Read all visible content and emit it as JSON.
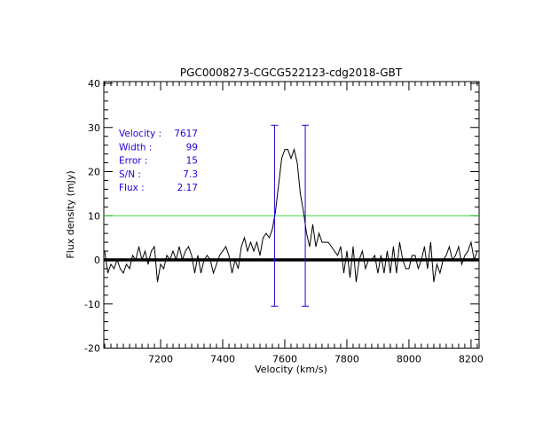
{
  "chart_data": {
    "type": "line",
    "title": "PGC0008273-CGCG522123-cdg2018-GBT",
    "xlabel": "Velocity (km/s)",
    "ylabel": "Flux density (mJy)",
    "xlim": [
      7017,
      8226
    ],
    "ylim": [
      -20,
      40
    ],
    "x_ticks": [
      7200,
      7400,
      7600,
      7800,
      8000,
      8200
    ],
    "y_ticks": [
      -20,
      -10,
      0,
      10,
      20,
      30,
      40
    ],
    "x_minor_step": 20,
    "y_minor_step": 2,
    "grid": false,
    "reference_lines": [
      {
        "y": 0,
        "color": "#000000",
        "style": "thick"
      },
      {
        "y": 10,
        "color": "#33dd33",
        "style": "thin"
      }
    ],
    "markers": [
      {
        "x": 7567,
        "y_range": [
          -10.5,
          30.5
        ],
        "color": "#2200dd"
      },
      {
        "x": 7666,
        "y_range": [
          -10.5,
          30.5
        ],
        "color": "#2200dd"
      }
    ],
    "annotations": [
      {
        "label": "Velocity :",
        "value": "7617"
      },
      {
        "label": "Width :",
        "value": "99"
      },
      {
        "label": "Error :",
        "value": "15"
      },
      {
        "label": "S/N :",
        "value": "7.3"
      },
      {
        "label": "Flux :",
        "value": "2.17"
      }
    ],
    "annotation_color": "#2200dd",
    "series": [
      {
        "color": "#000000",
        "x": [
          7020,
          7030,
          7040,
          7050,
          7060,
          7070,
          7080,
          7090,
          7100,
          7110,
          7120,
          7130,
          7140,
          7150,
          7160,
          7170,
          7180,
          7190,
          7200,
          7210,
          7220,
          7230,
          7240,
          7250,
          7260,
          7270,
          7280,
          7290,
          7300,
          7310,
          7320,
          7330,
          7340,
          7350,
          7360,
          7370,
          7380,
          7390,
          7400,
          7410,
          7420,
          7430,
          7440,
          7450,
          7460,
          7470,
          7480,
          7490,
          7500,
          7510,
          7520,
          7530,
          7540,
          7550,
          7560,
          7570,
          7580,
          7590,
          7600,
          7610,
          7620,
          7630,
          7640,
          7650,
          7660,
          7670,
          7680,
          7690,
          7700,
          7710,
          7720,
          7730,
          7740,
          7750,
          7760,
          7770,
          7780,
          7790,
          7800,
          7810,
          7820,
          7830,
          7840,
          7850,
          7860,
          7870,
          7880,
          7890,
          7900,
          7910,
          7920,
          7930,
          7940,
          7950,
          7960,
          7970,
          7980,
          7990,
          8000,
          8010,
          8020,
          8030,
          8040,
          8050,
          8060,
          8070,
          8080,
          8090,
          8100,
          8110,
          8120,
          8130,
          8140,
          8150,
          8160,
          8170,
          8180,
          8190,
          8200,
          8210,
          8220
        ],
        "values": [
          2,
          -3,
          -1,
          -2,
          0,
          -2,
          -3,
          -1,
          -2,
          1,
          0,
          3,
          0,
          2,
          -1,
          2,
          3,
          -5,
          -1,
          -2,
          1,
          0,
          2,
          0,
          3,
          0,
          2,
          3,
          1,
          -3,
          1,
          -3,
          0,
          1,
          0,
          -3,
          -1,
          1,
          2,
          3,
          1,
          -3,
          0,
          -2,
          3,
          5,
          2,
          4,
          2,
          4,
          1,
          5,
          6,
          5,
          7,
          11,
          17,
          23,
          25,
          25,
          23,
          25,
          22,
          15,
          11,
          6,
          3,
          8,
          3,
          6,
          4,
          4,
          4,
          3,
          2,
          1,
          3,
          -3,
          2,
          -4,
          3,
          -5,
          0,
          2,
          -2,
          0,
          0,
          1,
          -3,
          1,
          -3,
          2,
          -3,
          3,
          -3,
          4,
          0,
          -2,
          -2,
          1,
          1,
          -2,
          0,
          3,
          -2,
          4,
          -5,
          -1,
          -3,
          0,
          1,
          3,
          0,
          1,
          3,
          -1,
          1,
          2,
          4,
          0,
          2
        ]
      }
    ]
  }
}
